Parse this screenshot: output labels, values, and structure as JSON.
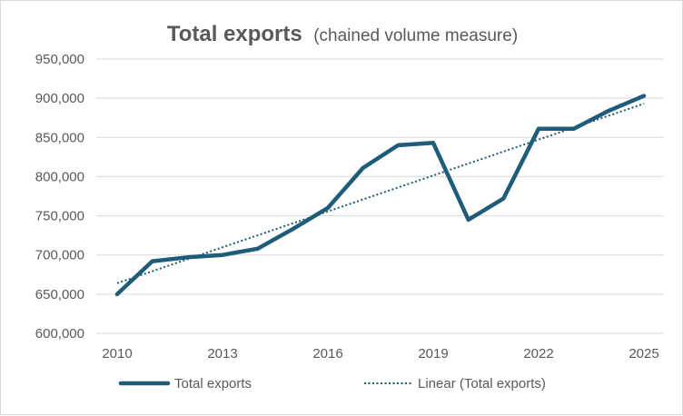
{
  "chart_data": {
    "type": "line",
    "title": "Total exports",
    "subtitle": "(chained volume measure)",
    "xlabel": "",
    "ylabel": "",
    "x": [
      2010,
      2011,
      2012,
      2013,
      2014,
      2015,
      2016,
      2017,
      2018,
      2019,
      2020,
      2021,
      2022,
      2023,
      2024,
      2025
    ],
    "x_tick_labels": [
      "2010",
      "2013",
      "2016",
      "2019",
      "2022",
      "2025"
    ],
    "x_tick_values": [
      2010,
      2013,
      2016,
      2019,
      2022,
      2025
    ],
    "y_tick_labels": [
      "600,000",
      "650,000",
      "700,000",
      "750,000",
      "800,000",
      "850,000",
      "900,000",
      "950,000"
    ],
    "y_tick_values": [
      600000,
      650000,
      700000,
      750000,
      800000,
      850000,
      900000,
      950000
    ],
    "ylim": [
      600000,
      950000
    ],
    "xlim": [
      2010,
      2025
    ],
    "grid": true,
    "legend_position": "bottom",
    "series": [
      {
        "name": "Total exports",
        "style": "solid",
        "color": "#1f5c7a",
        "values": [
          650000,
          692000,
          697000,
          700000,
          708000,
          733000,
          760000,
          811000,
          840000,
          843000,
          745000,
          772000,
          861000,
          861000,
          884000,
          903000
        ]
      },
      {
        "name": "Linear (Total exports)",
        "style": "dotted",
        "color": "#1f5c7a",
        "values": [
          664000,
          893000
        ],
        "x": [
          2010,
          2025
        ]
      }
    ]
  }
}
